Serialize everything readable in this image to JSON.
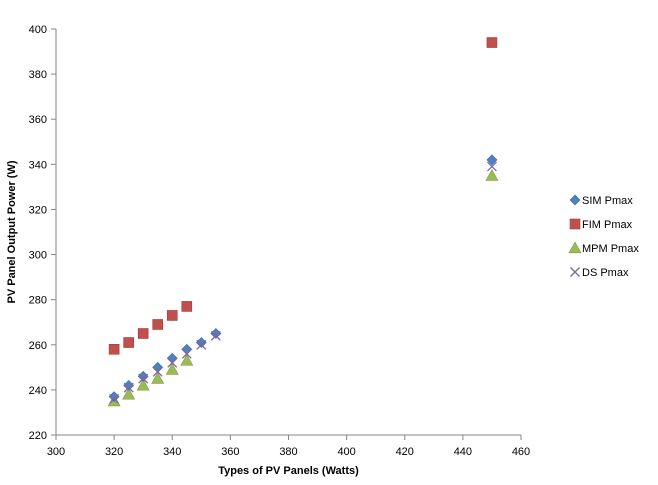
{
  "chart_data": {
    "type": "scatter",
    "title": "",
    "xlabel": "Types of PV Panels (Watts)",
    "ylabel": "PV Panel Output Power (W)",
    "xlim": [
      300,
      460
    ],
    "ylim": [
      220,
      400
    ],
    "x_ticks": [
      300,
      320,
      340,
      360,
      380,
      400,
      420,
      440,
      460
    ],
    "y_ticks": [
      220,
      240,
      260,
      280,
      300,
      320,
      340,
      360,
      380,
      400
    ],
    "grid": false,
    "legend_position": "right",
    "series": [
      {
        "name": "SIM Pmax",
        "marker": "diamond",
        "color": "#4F81BD",
        "points": [
          [
            320,
            237
          ],
          [
            325,
            242
          ],
          [
            330,
            246
          ],
          [
            335,
            250
          ],
          [
            340,
            254
          ],
          [
            345,
            258
          ],
          [
            350,
            261
          ],
          [
            355,
            265
          ],
          [
            450,
            342
          ]
        ]
      },
      {
        "name": "FIM Pmax",
        "marker": "square",
        "color": "#C0504D",
        "points": [
          [
            320,
            258
          ],
          [
            325,
            261
          ],
          [
            330,
            265
          ],
          [
            335,
            269
          ],
          [
            340,
            273
          ],
          [
            345,
            277
          ],
          [
            450,
            394
          ]
        ]
      },
      {
        "name": "MPM Pmax",
        "marker": "triangle",
        "color": "#9BBB59",
        "points": [
          [
            320,
            235
          ],
          [
            325,
            238
          ],
          [
            330,
            242
          ],
          [
            335,
            245
          ],
          [
            340,
            249
          ],
          [
            345,
            253
          ],
          [
            450,
            335
          ]
        ]
      },
      {
        "name": "DS Pmax",
        "marker": "cross",
        "color": "#8064A2",
        "points": [
          [
            320,
            236
          ],
          [
            325,
            241
          ],
          [
            330,
            245
          ],
          [
            335,
            248
          ],
          [
            340,
            252
          ],
          [
            345,
            256
          ],
          [
            350,
            260
          ],
          [
            355,
            264
          ],
          [
            450,
            339
          ]
        ]
      }
    ]
  }
}
